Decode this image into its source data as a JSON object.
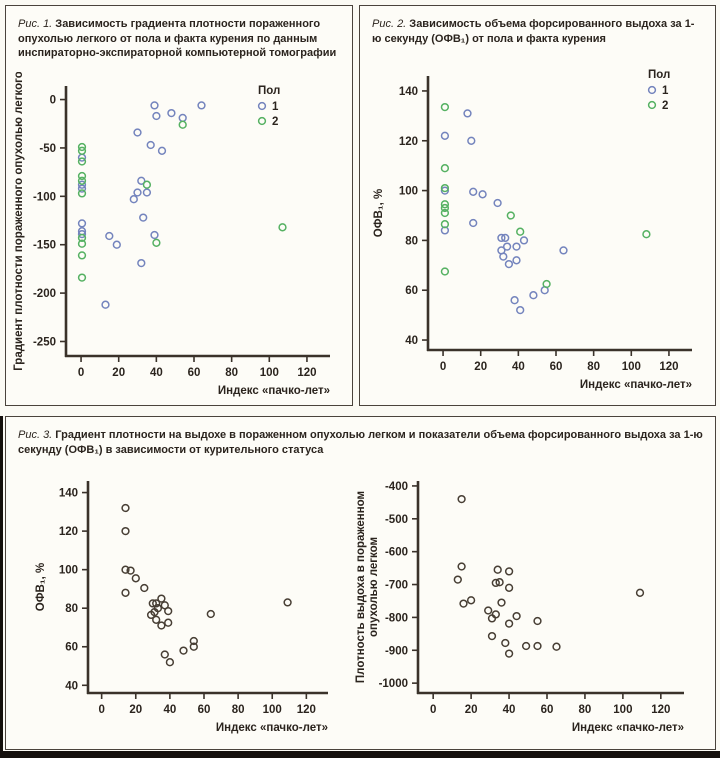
{
  "colors": {
    "ink": "#2b241e",
    "panel_border": "#4a433c",
    "axis": "#3a322a",
    "blue": "#7484bd",
    "green": "#55b162",
    "dark": "#473e34",
    "background": "#fbfaf4"
  },
  "figures": [
    {
      "label": "Рис. 1.",
      "title": "Зависимость градиента плотности пораженного опухолью легкого от пола и факта курения по данным инспираторно-экспираторной компьютерной томографии"
    },
    {
      "label": "Рис. 2.",
      "title": "Зависимость объема форсированного выдоха за 1-ю секунду (ОФВ₁) от пола и факта курения"
    },
    {
      "label": "Рис. 3.",
      "title": "Градиент плотности на выдохе в пораженном опухолью легком и показатели объема форсированного выдоха за 1-ю секунду (ОФВ₁) в зависимости от курительного статуса"
    }
  ],
  "chart_data": [
    {
      "id": "fig1",
      "type": "scatter",
      "xlabel": "Индекс «пачко-лет»",
      "ylabel": "Градиент плотности пораженного опухолью легкого",
      "xlim": [
        -8,
        128
      ],
      "ylim": [
        -265,
        14
      ],
      "xticks": [
        0,
        20,
        40,
        60,
        80,
        100,
        120
      ],
      "yticks": [
        0,
        -50,
        -100,
        -150,
        -200,
        -250
      ],
      "legend": {
        "title": "Пол",
        "items": [
          {
            "label": "1",
            "color_key": "blue"
          },
          {
            "label": "2",
            "color_key": "green"
          }
        ]
      },
      "series": [
        {
          "name": "1",
          "color_key": "blue",
          "points": [
            [
              0.5,
              -60
            ],
            [
              0.5,
              -88
            ],
            [
              0.5,
              -92
            ],
            [
              0.5,
              -128
            ],
            [
              0.5,
              -136
            ],
            [
              0.5,
              -139
            ],
            [
              13,
              -212
            ],
            [
              15,
              -141
            ],
            [
              19,
              -150
            ],
            [
              28,
              -103
            ],
            [
              30,
              -34
            ],
            [
              30,
              -96
            ],
            [
              32,
              -84
            ],
            [
              32,
              -169
            ],
            [
              33,
              -122
            ],
            [
              35,
              -96
            ],
            [
              37,
              -47
            ],
            [
              39,
              -6
            ],
            [
              39,
              -140
            ],
            [
              40,
              -17
            ],
            [
              43,
              -53
            ],
            [
              48,
              -14
            ],
            [
              54,
              -19
            ],
            [
              64,
              -6
            ]
          ]
        },
        {
          "name": "2",
          "color_key": "green",
          "points": [
            [
              0.5,
              -49
            ],
            [
              0.5,
              -53
            ],
            [
              0.5,
              -64
            ],
            [
              0.5,
              -79
            ],
            [
              0.5,
              -84
            ],
            [
              0.5,
              -97
            ],
            [
              0.5,
              -143
            ],
            [
              0.5,
              -149
            ],
            [
              0.5,
              -161
            ],
            [
              0.5,
              -184
            ],
            [
              35,
              -88
            ],
            [
              40,
              -148
            ],
            [
              54,
              -26
            ],
            [
              107,
              -132
            ]
          ]
        }
      ]
    },
    {
      "id": "fig2",
      "type": "scatter",
      "xlabel": "Индекс «пачко-лет»",
      "ylabel": "ОФВ₁, %",
      "xlim": [
        -8,
        128
      ],
      "ylim": [
        36,
        146
      ],
      "xticks": [
        0,
        20,
        40,
        60,
        80,
        100,
        120
      ],
      "yticks": [
        140,
        120,
        100,
        80,
        60,
        40
      ],
      "legend": {
        "title": "Пол",
        "items": [
          {
            "label": "1",
            "color_key": "blue"
          },
          {
            "label": "2",
            "color_key": "green"
          }
        ]
      },
      "series": [
        {
          "name": "1",
          "color_key": "blue",
          "points": [
            [
              13,
              131
            ],
            [
              1,
              122
            ],
            [
              15,
              120
            ],
            [
              1,
              100
            ],
            [
              16,
              99.5
            ],
            [
              21,
              98.5
            ],
            [
              29,
              95
            ],
            [
              16,
              87
            ],
            [
              1,
              84
            ],
            [
              31,
              81
            ],
            [
              33,
              81
            ],
            [
              43,
              80
            ],
            [
              34,
              77.5
            ],
            [
              39,
              77.5
            ],
            [
              31,
              76
            ],
            [
              32,
              73.5
            ],
            [
              39,
              72
            ],
            [
              35,
              70.5
            ],
            [
              64,
              76
            ],
            [
              54,
              60
            ],
            [
              48,
              58
            ],
            [
              38,
              56
            ],
            [
              41,
              52
            ]
          ]
        },
        {
          "name": "2",
          "color_key": "green",
          "points": [
            [
              1,
              133.5
            ],
            [
              1,
              109
            ],
            [
              1,
              101
            ],
            [
              1,
              94.5
            ],
            [
              1,
              93
            ],
            [
              1,
              91
            ],
            [
              1,
              86.5
            ],
            [
              36,
              90
            ],
            [
              41,
              83.5
            ],
            [
              1,
              67.5
            ],
            [
              55,
              62.5
            ],
            [
              108,
              82.5
            ]
          ]
        }
      ]
    },
    {
      "id": "fig3L",
      "type": "scatter",
      "xlabel": "Индекс «пачко-лет»",
      "ylabel": "ОФВ₁, %",
      "xlim": [
        -8,
        128
      ],
      "ylim": [
        36,
        146
      ],
      "xticks": [
        0,
        20,
        40,
        60,
        80,
        100,
        120
      ],
      "yticks": [
        140,
        120,
        100,
        80,
        60,
        40
      ],
      "series": [
        {
          "name": "",
          "color_key": "dark",
          "points": [
            [
              14,
              132
            ],
            [
              14,
              120
            ],
            [
              14,
              100
            ],
            [
              17,
              99.5
            ],
            [
              20,
              95.5
            ],
            [
              14,
              88
            ],
            [
              25,
              90.5
            ],
            [
              30,
              82.5
            ],
            [
              32,
              82.5
            ],
            [
              33,
              80
            ],
            [
              35,
              85
            ],
            [
              37,
              81.5
            ],
            [
              31,
              78
            ],
            [
              29,
              76.5
            ],
            [
              32,
              74
            ],
            [
              35,
              71
            ],
            [
              39,
              78.5
            ],
            [
              39,
              72.5
            ],
            [
              64,
              77
            ],
            [
              37,
              56
            ],
            [
              40,
              52
            ],
            [
              48,
              58
            ],
            [
              54,
              63
            ],
            [
              54,
              60
            ],
            [
              109,
              83
            ]
          ]
        }
      ]
    },
    {
      "id": "fig3R",
      "type": "scatter",
      "xlabel": "Индекс «пачко-лет»",
      "ylabel": [
        "Плотность выдоха в пораженном",
        "опухолью легком"
      ],
      "xlim": [
        -8,
        128
      ],
      "ylim": [
        -1030,
        -385
      ],
      "xticks": [
        0,
        20,
        40,
        60,
        80,
        100,
        120
      ],
      "yticks": [
        -400,
        -500,
        -600,
        -700,
        -800,
        -900,
        -1000
      ],
      "series": [
        {
          "name": "",
          "color_key": "dark",
          "points": [
            [
              15,
              -440
            ],
            [
              15,
              -645
            ],
            [
              13,
              -685
            ],
            [
              16,
              -758
            ],
            [
              20,
              -748
            ],
            [
              34,
              -655
            ],
            [
              40,
              -660
            ],
            [
              33,
              -695
            ],
            [
              35,
              -693
            ],
            [
              40,
              -710
            ],
            [
              36,
              -755
            ],
            [
              29,
              -779
            ],
            [
              33,
              -791
            ],
            [
              31,
              -803
            ],
            [
              44,
              -796
            ],
            [
              40,
              -819
            ],
            [
              55,
              -811
            ],
            [
              31,
              -857
            ],
            [
              38,
              -878
            ],
            [
              49,
              -887
            ],
            [
              55,
              -887
            ],
            [
              65,
              -889
            ],
            [
              40,
              -910
            ],
            [
              109,
              -725
            ]
          ]
        }
      ]
    }
  ]
}
